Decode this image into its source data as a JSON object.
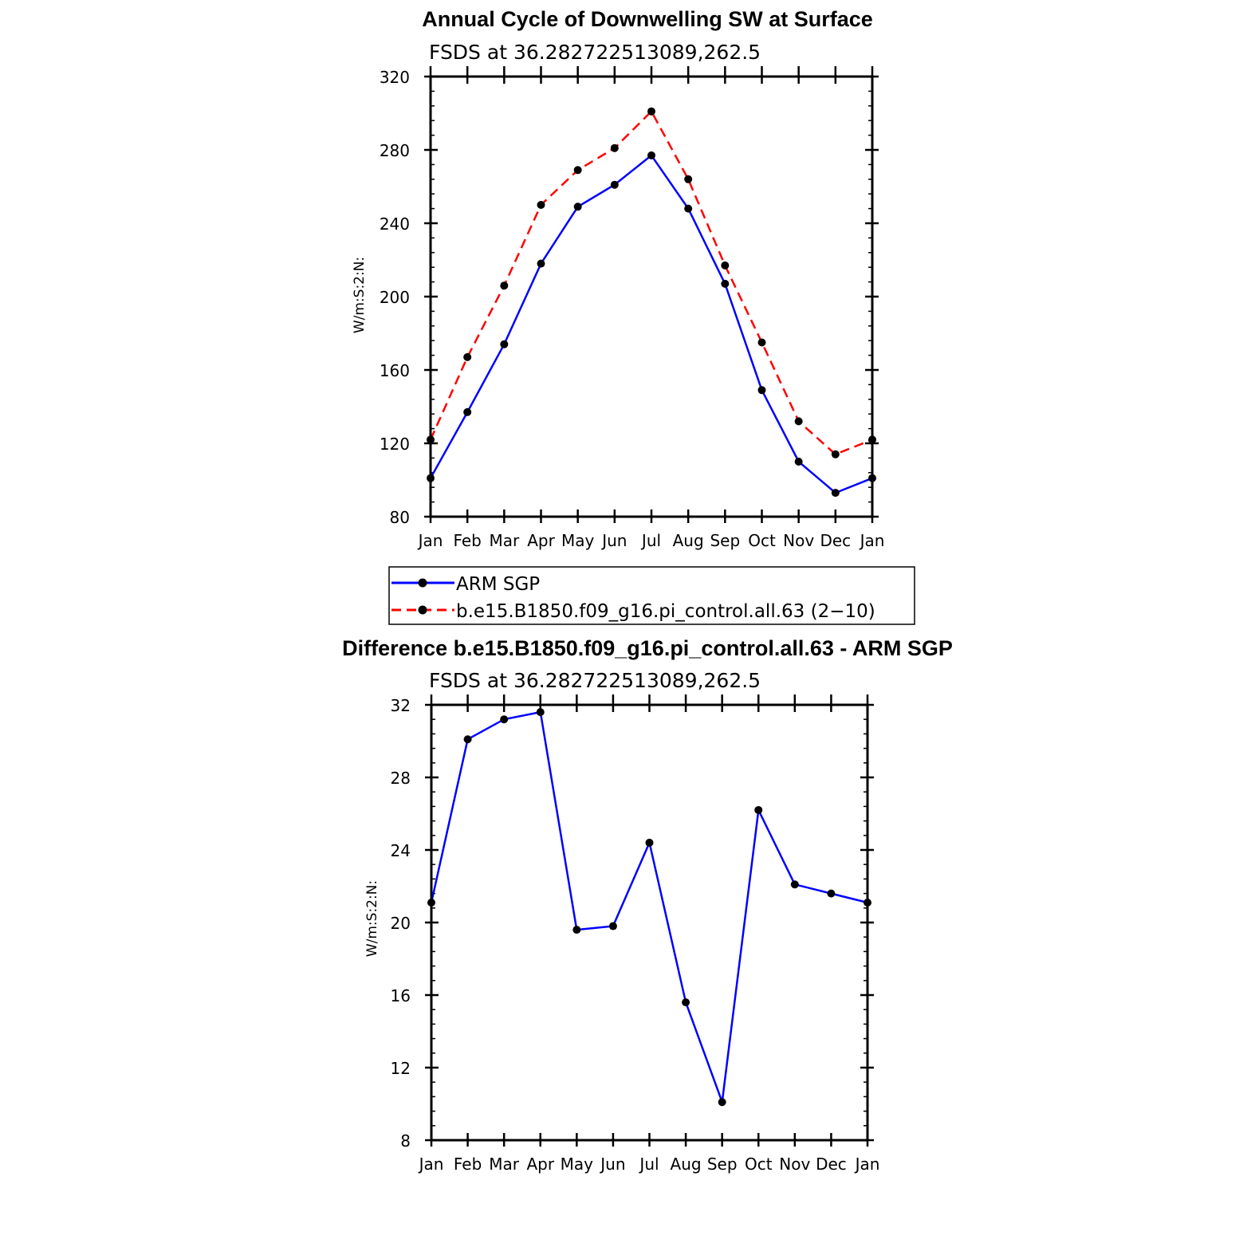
{
  "chart_data": [
    {
      "type": "line",
      "title": "Annual Cycle of Downwelling SW at Surface",
      "subtitle": "FSDS at 36.282722513089,262.5",
      "ylabel": "W/m:S:2:N:",
      "xlabel": "",
      "categories": [
        "Jan",
        "Feb",
        "Mar",
        "Apr",
        "May",
        "Jun",
        "Jul",
        "Aug",
        "Sep",
        "Oct",
        "Nov",
        "Dec",
        "Jan"
      ],
      "ylim": [
        80,
        320
      ],
      "yticks": [
        80,
        120,
        160,
        200,
        240,
        280,
        320
      ],
      "grid": false,
      "series": [
        {
          "name": "ARM SGP",
          "color": "#0000ff",
          "dash": "solid",
          "values": [
            101,
            137,
            174,
            218,
            249,
            261,
            277,
            248,
            207,
            149,
            110,
            93,
            101
          ]
        },
        {
          "name": "b.e15.B1850.f09_g16.pi_control.all.63 (2−10)",
          "color": "#ff0000",
          "dash": "dashed",
          "values": [
            122,
            167,
            206,
            250,
            269,
            281,
            301,
            264,
            217,
            175,
            132,
            114,
            122
          ]
        }
      ],
      "legend": {
        "placement": "bottom"
      }
    },
    {
      "type": "line",
      "title": "Difference b.e15.B1850.f09_g16.pi_control.all.63 - ARM SGP",
      "subtitle": "FSDS at 36.282722513089,262.5",
      "ylabel": "W/m:S:2:N:",
      "xlabel": "",
      "categories": [
        "Jan",
        "Feb",
        "Mar",
        "Apr",
        "May",
        "Jun",
        "Jul",
        "Aug",
        "Sep",
        "Oct",
        "Nov",
        "Dec",
        "Jan"
      ],
      "ylim": [
        8,
        32
      ],
      "yticks": [
        8,
        12,
        16,
        20,
        24,
        28,
        32
      ],
      "grid": false,
      "series": [
        {
          "name": "Difference",
          "color": "#0000ff",
          "dash": "solid",
          "values": [
            21.1,
            30.1,
            31.2,
            31.6,
            19.6,
            19.8,
            24.4,
            15.6,
            10.1,
            26.2,
            22.1,
            21.6,
            21.1
          ]
        }
      ]
    }
  ]
}
